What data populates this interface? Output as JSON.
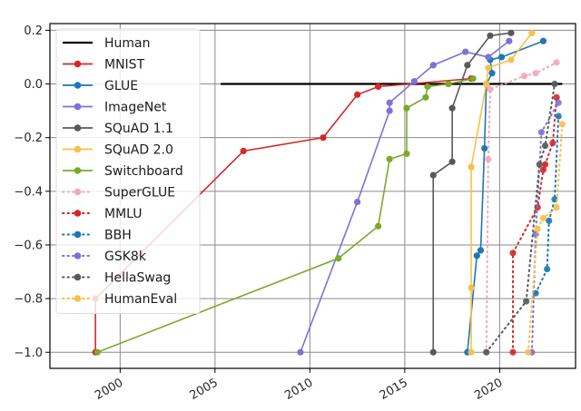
{
  "chart_data": {
    "type": "line",
    "title": "",
    "xlabel": "",
    "ylabel": "",
    "xlim": [
      1996.3,
      2024.0
    ],
    "ylim": [
      -1.06,
      0.225
    ],
    "xticks": [
      2000,
      2005,
      2010,
      2015,
      2020
    ],
    "xtick_labels": [
      "2000",
      "2005",
      "2010",
      "2015",
      "2020"
    ],
    "yticks": [
      0.2,
      0.0,
      -0.2,
      -0.4,
      -0.6,
      -0.8,
      -1.0
    ],
    "ytick_labels": [
      "0.2",
      "0.0",
      "−0.2",
      "−0.4",
      "−0.6",
      "−0.8",
      "−1.0"
    ],
    "grid": true,
    "legend_position": "upper-left",
    "series": [
      {
        "name": "Human",
        "style": "solid",
        "color": "#000000",
        "markers": false,
        "points": [
          [
            2005.3,
            0.0
          ],
          [
            2023.3,
            0.0
          ]
        ]
      },
      {
        "name": "MNIST",
        "style": "solid",
        "color": "#d62728",
        "markers": true,
        "points": [
          [
            1998.7,
            -1.0
          ],
          [
            1998.7,
            -0.8
          ],
          [
            2006.5,
            -0.25
          ],
          [
            2010.7,
            -0.2
          ],
          [
            2012.5,
            -0.04
          ],
          [
            2013.6,
            -0.01
          ],
          [
            2018.5,
            0.02
          ]
        ]
      },
      {
        "name": "GLUE",
        "style": "solid",
        "color": "#1f77b4",
        "markers": true,
        "points": [
          [
            2018.3,
            -1.0
          ],
          [
            2018.8,
            -0.64
          ],
          [
            2019.0,
            -0.62
          ],
          [
            2019.2,
            -0.24
          ],
          [
            2019.3,
            0.0
          ],
          [
            2019.6,
            0.04
          ],
          [
            2019.5,
            0.09
          ],
          [
            2020.1,
            0.1
          ],
          [
            2022.3,
            0.16
          ]
        ]
      },
      {
        "name": "ImageNet",
        "style": "solid",
        "color": "#7b73d6",
        "markers": true,
        "points": [
          [
            2009.5,
            -1.0
          ],
          [
            2012.5,
            -0.44
          ],
          [
            2014.2,
            -0.1
          ],
          [
            2014.2,
            -0.07
          ],
          [
            2015.5,
            0.01
          ],
          [
            2016.5,
            0.07
          ],
          [
            2018.2,
            0.12
          ],
          [
            2019.4,
            0.1
          ],
          [
            2020.5,
            0.16
          ]
        ]
      },
      {
        "name": "SQuAD 1.1",
        "style": "solid",
        "color": "#595959",
        "markers": true,
        "points": [
          [
            2016.5,
            -1.0
          ],
          [
            2016.5,
            -0.34
          ],
          [
            2017.5,
            -0.29
          ],
          [
            2017.5,
            -0.09
          ],
          [
            2018.3,
            0.07
          ],
          [
            2019.5,
            0.18
          ],
          [
            2020.6,
            0.19
          ]
        ]
      },
      {
        "name": "SQuAD 2.0",
        "style": "solid",
        "color": "#f7c04a",
        "markers": true,
        "points": [
          [
            2018.5,
            -1.0
          ],
          [
            2018.5,
            -0.76
          ],
          [
            2018.5,
            -0.31
          ],
          [
            2019.3,
            0.0
          ],
          [
            2019.4,
            0.06
          ],
          [
            2020.6,
            0.09
          ],
          [
            2021.7,
            0.19
          ]
        ]
      },
      {
        "name": "Switchboard",
        "style": "solid",
        "color": "#7aaa28",
        "markers": true,
        "points": [
          [
            1998.8,
            -1.0
          ],
          [
            2011.5,
            -0.65
          ],
          [
            2013.6,
            -0.53
          ],
          [
            2014.2,
            -0.28
          ],
          [
            2015.1,
            -0.26
          ],
          [
            2015.1,
            -0.09
          ],
          [
            2016.1,
            -0.05
          ],
          [
            2016.2,
            -0.01
          ],
          [
            2017.3,
            0.0
          ],
          [
            2018.6,
            0.02
          ]
        ]
      },
      {
        "name": "SuperGLUE",
        "style": "dotted",
        "color": "#f4a7b9",
        "markers": true,
        "points": [
          [
            2019.3,
            -1.0
          ],
          [
            2019.4,
            -0.28
          ],
          [
            2019.5,
            -0.02
          ],
          [
            2021.3,
            0.03
          ],
          [
            2021.9,
            0.04
          ],
          [
            2023.0,
            0.08
          ]
        ]
      },
      {
        "name": "MMLU",
        "style": "dotted",
        "color": "#d62728",
        "markers": true,
        "points": [
          [
            2020.7,
            -1.0
          ],
          [
            2020.7,
            -0.63
          ],
          [
            2022.0,
            -0.46
          ],
          [
            2022.3,
            -0.32
          ],
          [
            2022.4,
            -0.3
          ],
          [
            2022.8,
            -0.22
          ],
          [
            2023.0,
            -0.05
          ]
        ]
      },
      {
        "name": "BBH",
        "style": "dotted",
        "color": "#1f77b4",
        "markers": true,
        "points": [
          [
            2021.9,
            -0.78
          ],
          [
            2022.5,
            -0.69
          ],
          [
            2022.6,
            -0.51
          ],
          [
            2022.9,
            -0.43
          ],
          [
            2023.1,
            -0.12
          ]
        ]
      },
      {
        "name": "GSK8k",
        "style": "dotted",
        "color": "#7b73d6",
        "markers": true,
        "points": [
          [
            2021.7,
            -1.0
          ],
          [
            2021.9,
            -0.56
          ],
          [
            2022.2,
            -0.18
          ],
          [
            2023.1,
            -0.07
          ]
        ]
      },
      {
        "name": "HellaSwag",
        "style": "dotted",
        "color": "#595959",
        "markers": true,
        "points": [
          [
            2019.3,
            -1.0
          ],
          [
            2021.4,
            -0.81
          ],
          [
            2022.1,
            -0.3
          ],
          [
            2022.4,
            -0.23
          ],
          [
            2022.9,
            0.0
          ]
        ]
      },
      {
        "name": "HumanEval",
        "style": "dotted",
        "color": "#f7c04a",
        "markers": true,
        "points": [
          [
            2021.5,
            -1.0
          ],
          [
            2022.0,
            -0.54
          ],
          [
            2022.3,
            -0.5
          ],
          [
            2023.0,
            -0.46
          ],
          [
            2023.3,
            -0.15
          ]
        ]
      }
    ]
  }
}
